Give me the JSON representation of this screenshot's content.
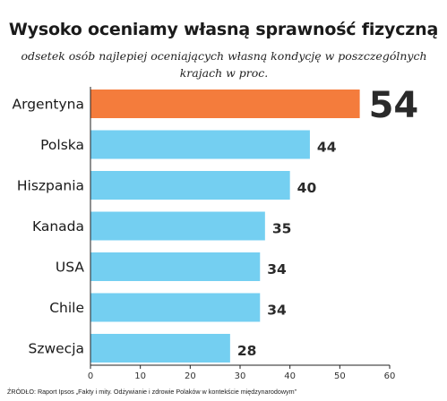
{
  "title": "Wysoko oceniamy własną sprawność fizyczną",
  "subtitle": "odsetek osób najlepiej oceniających własną kondycję w poszczególnych krajach w proc.",
  "source": "ŹRÓDŁO: Raport Ipsos „Fakty i mity. Odżywianie i zdrowie Polaków w kontekście międzynarodowym”",
  "colors": {
    "highlight": "#f47c3c",
    "bar": "#74cff1",
    "axis": "#222222",
    "text": "#1a1a1a"
  },
  "chart_data": {
    "type": "bar",
    "orientation": "horizontal",
    "categories": [
      "Argentyna",
      "Polska",
      "Hiszpania",
      "Kanada",
      "USA",
      "Chile",
      "Szwecja"
    ],
    "values": [
      54,
      44,
      40,
      35,
      34,
      34,
      28
    ],
    "highlighted": [
      "Argentyna"
    ],
    "xlim": [
      0,
      60
    ],
    "xticks": [
      0,
      10,
      20,
      30,
      40,
      50,
      60
    ],
    "grid": false,
    "legend": "none"
  }
}
